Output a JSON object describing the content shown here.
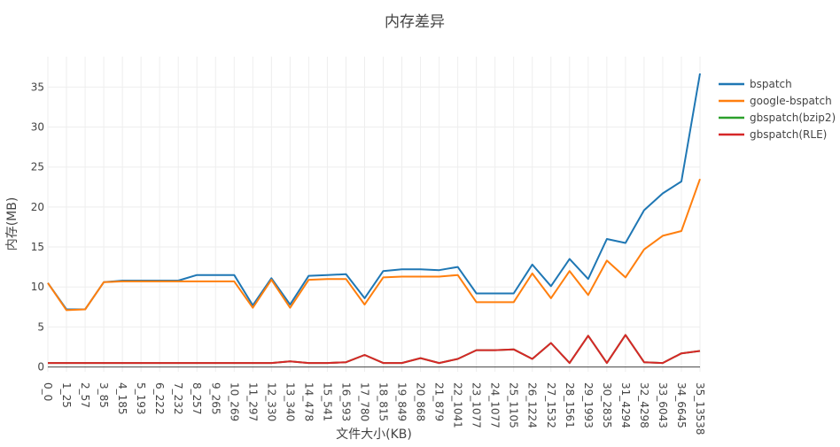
{
  "chart_data": {
    "type": "line",
    "title": "内存差异",
    "xlabel": "文件大小(KB)",
    "ylabel": "内存(MB)",
    "ylim": [
      -0.6,
      38.8
    ],
    "yticks": [
      0,
      5,
      10,
      15,
      20,
      25,
      30,
      35
    ],
    "grid": true,
    "legend_position": "top-right",
    "categories": [
      "0_0",
      "1_25",
      "2_57",
      "3_85",
      "4_185",
      "5_193",
      "6_222",
      "7_232",
      "8_257",
      "9_265",
      "10_269",
      "11_297",
      "12_330",
      "13_340",
      "14_478",
      "15_541",
      "16_593",
      "17_780",
      "18_815",
      "19_849",
      "20_868",
      "21_879",
      "22_1041",
      "23_1077",
      "24_1077",
      "25_1105",
      "26_1224",
      "27_1532",
      "28_1561",
      "29_1993",
      "30_2835",
      "31_4294",
      "32_4298",
      "33_6043",
      "34_6645",
      "35_13538"
    ],
    "series": [
      {
        "name": "bspatch",
        "color": "#1f77b4",
        "values": [
          10.5,
          7.2,
          7.2,
          10.6,
          10.8,
          10.8,
          10.8,
          10.8,
          11.5,
          11.5,
          11.5,
          7.7,
          11.1,
          7.8,
          11.4,
          11.5,
          11.6,
          8.6,
          12.0,
          12.2,
          12.2,
          12.1,
          12.5,
          9.2,
          9.2,
          9.2,
          12.8,
          10.1,
          13.5,
          11.0,
          16.0,
          15.5,
          19.6,
          21.7,
          23.2,
          36.7
        ]
      },
      {
        "name": "google-bspatch",
        "color": "#ff7f0e",
        "values": [
          10.5,
          7.1,
          7.2,
          10.6,
          10.7,
          10.7,
          10.7,
          10.7,
          10.7,
          10.7,
          10.7,
          7.4,
          10.9,
          7.4,
          10.9,
          11.0,
          11.0,
          7.8,
          11.2,
          11.3,
          11.3,
          11.3,
          11.5,
          8.1,
          8.1,
          8.1,
          11.7,
          8.6,
          12.0,
          9.0,
          13.3,
          11.2,
          14.7,
          16.4,
          17.0,
          23.5
        ]
      },
      {
        "name": "gbspatch(bzip2)",
        "color": "#2ca02c",
        "values": [
          0.5,
          0.5,
          0.5,
          0.5,
          0.5,
          0.5,
          0.5,
          0.5,
          0.5,
          0.5,
          0.5,
          0.5,
          0.5,
          0.7,
          0.5,
          0.5,
          0.6,
          1.5,
          0.5,
          0.5,
          1.1,
          0.5,
          1.0,
          2.1,
          2.1,
          2.2,
          1.0,
          3.0,
          0.5,
          3.9,
          0.5,
          4.0,
          0.6,
          0.5,
          1.7,
          2.0
        ]
      },
      {
        "name": "gbspatch(RLE)",
        "color": "#d62728",
        "values": [
          0.5,
          0.5,
          0.5,
          0.5,
          0.5,
          0.5,
          0.5,
          0.5,
          0.5,
          0.5,
          0.5,
          0.5,
          0.5,
          0.7,
          0.5,
          0.5,
          0.6,
          1.5,
          0.5,
          0.5,
          1.1,
          0.5,
          1.0,
          2.1,
          2.1,
          2.2,
          1.0,
          3.0,
          0.5,
          3.9,
          0.5,
          4.0,
          0.6,
          0.5,
          1.7,
          2.0
        ]
      }
    ]
  }
}
